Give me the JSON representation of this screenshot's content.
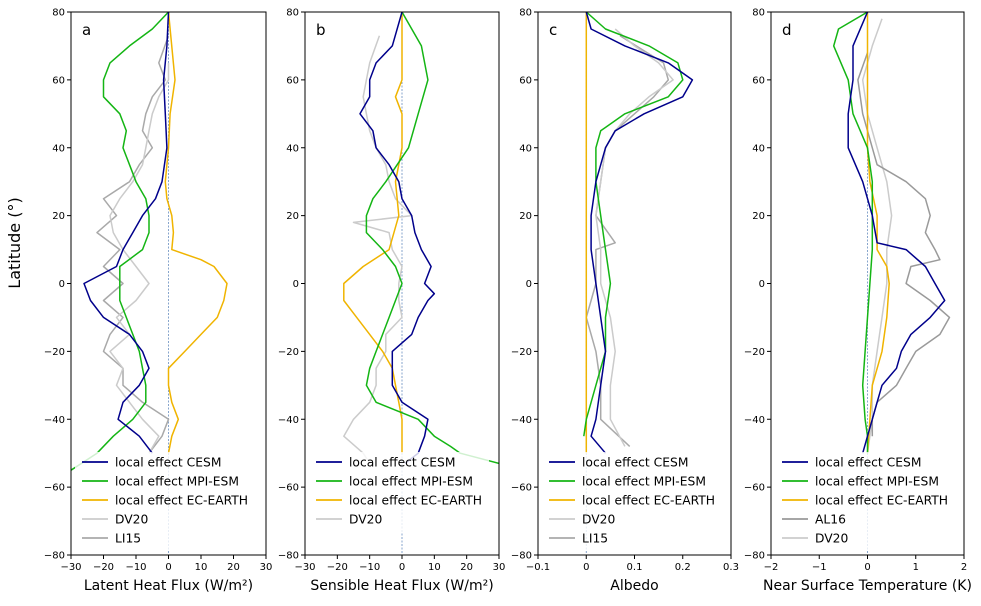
{
  "ylabel": "Latitude (°)",
  "colors": {
    "CESM": "#00008b",
    "MPI-ESM": "#14b514",
    "EC-EARTH": "#f0b400",
    "DV20": "#cbcbcb",
    "LI15": "#a9a9a9",
    "AL16": "#9a9a9a",
    "zero_line": "#6a8fc0"
  },
  "chart_data": [
    {
      "type": "line",
      "panel_label": "a",
      "xlabel": "Latent Heat Flux (W/m²)",
      "xlim": [
        -30,
        30
      ],
      "ylim": [
        -80,
        80
      ],
      "xticks": [
        -30,
        -20,
        -10,
        0,
        10,
        20,
        30
      ],
      "yticks": [
        -80,
        -60,
        -40,
        -20,
        0,
        20,
        40,
        60,
        80
      ],
      "legend": "lower-left",
      "grid": false,
      "series": [
        {
          "name": "local effect CESM",
          "color": "#00008b",
          "lat": [
            80,
            70,
            60,
            50,
            40,
            30,
            25,
            20,
            15,
            10,
            5,
            0,
            -5,
            -10,
            -15,
            -20,
            -25,
            -30,
            -35,
            -40,
            -45,
            -50
          ],
          "values": [
            0,
            -0.5,
            -1.5,
            -1,
            -0.5,
            -2,
            -4,
            -8,
            -11,
            -14,
            -16,
            -26,
            -24,
            -20,
            -12,
            -8,
            -6,
            -9,
            -14,
            -15.5,
            -9,
            -5
          ]
        },
        {
          "name": "local effect MPI-ESM",
          "color": "#14b514",
          "lat": [
            80,
            75,
            70,
            65,
            60,
            55,
            50,
            45,
            40,
            35,
            30,
            25,
            20,
            15,
            10,
            5,
            0,
            -5,
            -10,
            -15,
            -20,
            -25,
            -30,
            -35,
            -40,
            -45,
            -50,
            -55
          ],
          "values": [
            0,
            -5,
            -12,
            -18,
            -20,
            -20,
            -15,
            -13,
            -14,
            -12,
            -10,
            -7,
            -6,
            -6,
            -8,
            -15,
            -15,
            -15,
            -13,
            -11,
            -9,
            -8,
            -7,
            -7,
            -11,
            -17,
            -22,
            -30
          ]
        },
        {
          "name": "local effect EC-EARTH",
          "color": "#f0b400",
          "lat": [
            80,
            60,
            50,
            40,
            30,
            25,
            20,
            15,
            10,
            7,
            5,
            0,
            -5,
            -10,
            -15,
            -20,
            -25,
            -30,
            -35,
            -40,
            -45,
            -50
          ],
          "values": [
            0,
            2,
            0.5,
            0,
            -1,
            -0.5,
            1,
            1.5,
            1,
            10,
            14,
            18,
            17,
            15,
            10,
            5,
            0,
            0,
            1,
            3,
            1,
            0
          ]
        },
        {
          "name": "DV20",
          "color": "#cbcbcb",
          "lat": [
            65,
            60,
            55,
            50,
            45,
            40,
            35,
            30,
            25,
            20,
            15,
            10,
            5,
            0,
            -5,
            -10,
            -15,
            -20,
            -25,
            -30,
            -35,
            -40,
            -45,
            -50
          ],
          "values": [
            0,
            0,
            -3,
            -5,
            -6,
            -7,
            -8,
            -11,
            -15,
            -18,
            -17,
            -14,
            -10,
            -6,
            -10,
            -16,
            -12,
            -18,
            -14,
            -16,
            -12,
            -8,
            -3,
            -6
          ]
        },
        {
          "name": "LI15",
          "color": "#a9a9a9",
          "lat": [
            73,
            65,
            60,
            55,
            50,
            45,
            40,
            35,
            30,
            25,
            20,
            15,
            10,
            5,
            0,
            -5,
            -10,
            -15,
            -20,
            -25,
            -30,
            -35,
            -40,
            -45,
            -50
          ],
          "values": [
            0,
            -3,
            -1,
            -5,
            -7,
            -8,
            -5,
            -9,
            -12,
            -20,
            -16,
            -22,
            -15,
            -20,
            -14,
            -20,
            -14,
            -18,
            -20,
            -14,
            -14,
            -8,
            0,
            -2,
            -6
          ]
        }
      ]
    },
    {
      "type": "line",
      "panel_label": "b",
      "xlabel": "Sensible Heat Flux (W/m²)",
      "xlim": [
        -30,
        30
      ],
      "ylim": [
        -80,
        80
      ],
      "xticks": [
        -30,
        -20,
        -10,
        0,
        10,
        20,
        30
      ],
      "yticks": [
        -80,
        -60,
        -40,
        -20,
        0,
        20,
        40,
        60,
        80
      ],
      "legend": "lower-left",
      "grid": false,
      "series": [
        {
          "name": "local effect CESM",
          "color": "#00008b",
          "lat": [
            80,
            70,
            65,
            60,
            55,
            50,
            45,
            40,
            35,
            30,
            25,
            20,
            15,
            10,
            5,
            0,
            -3,
            -5,
            -10,
            -15,
            -20,
            -25,
            -30,
            -35,
            -40,
            -45,
            -50,
            -53
          ],
          "values": [
            0,
            -3,
            -8,
            -10,
            -10,
            -13,
            -9,
            -8,
            -4,
            -1,
            0,
            3,
            4,
            6,
            9,
            7,
            10,
            8,
            5,
            3,
            -3,
            -3,
            -3,
            0,
            8,
            7,
            5,
            1
          ]
        },
        {
          "name": "local effect MPI-ESM",
          "color": "#14b514",
          "lat": [
            80,
            70,
            60,
            50,
            40,
            30,
            25,
            20,
            15,
            10,
            5,
            0,
            -5,
            -10,
            -15,
            -20,
            -25,
            -30,
            -35,
            -40,
            -45,
            -48,
            -50,
            -53
          ],
          "values": [
            0,
            6,
            8,
            5,
            2,
            -5,
            -9,
            -11,
            -11,
            -6,
            -2,
            0,
            -2,
            -4,
            -6,
            -8,
            -10,
            -11,
            -8,
            5,
            10,
            15,
            18,
            30
          ]
        },
        {
          "name": "local effect EC-EARTH",
          "color": "#f0b400",
          "lat": [
            80,
            60,
            55,
            50,
            40,
            30,
            20,
            10,
            5,
            0,
            -5,
            -10,
            -15,
            -20,
            -25,
            -30,
            -35,
            -40,
            -50
          ],
          "values": [
            0,
            0,
            -2,
            0,
            0,
            -2,
            -1,
            -4,
            -12,
            -18,
            -18,
            -14,
            -10,
            -6,
            -3,
            -2,
            -1,
            0,
            0
          ]
        },
        {
          "name": "DV20",
          "color": "#cbcbcb",
          "lat": [
            73,
            65,
            60,
            55,
            50,
            45,
            40,
            35,
            30,
            25,
            20,
            18,
            15,
            10,
            5,
            0,
            -5,
            -10,
            -15,
            -20,
            -25,
            -30,
            -35,
            -40,
            -45,
            -50,
            -53
          ],
          "values": [
            -7,
            -10,
            -11,
            -12,
            -11,
            -10,
            -8,
            -5,
            -4,
            -2,
            3,
            -15,
            -4,
            -3,
            0,
            -1,
            -1,
            0,
            -5,
            -5,
            -8,
            -8,
            -10,
            -15,
            -18,
            -12,
            -10
          ]
        }
      ]
    },
    {
      "type": "line",
      "panel_label": "c",
      "xlabel": "Albedo",
      "xlim": [
        -0.1,
        0.3
      ],
      "ylim": [
        -80,
        80
      ],
      "xticks": [
        -0.1,
        0.0,
        0.1,
        0.2,
        0.3
      ],
      "yticks": [
        -80,
        -60,
        -40,
        -20,
        0,
        20,
        40,
        60,
        80
      ],
      "legend": "lower-left",
      "grid": false,
      "series": [
        {
          "name": "local effect CESM",
          "color": "#00008b",
          "lat": [
            80,
            75,
            70,
            65,
            60,
            55,
            50,
            45,
            40,
            30,
            20,
            10,
            0,
            -10,
            -20,
            -30,
            -40,
            -45,
            -50
          ],
          "values": [
            0,
            0.01,
            0.08,
            0.17,
            0.22,
            0.2,
            0.12,
            0.06,
            0.04,
            0.02,
            0.01,
            0.01,
            0.02,
            0.03,
            0.04,
            0.03,
            0.02,
            0.01,
            0.04
          ]
        },
        {
          "name": "local effect MPI-ESM",
          "color": "#14b514",
          "lat": [
            80,
            75,
            70,
            65,
            60,
            55,
            50,
            45,
            40,
            30,
            20,
            10,
            0,
            -10,
            -20,
            -30,
            -40,
            -45
          ],
          "values": [
            0,
            0.04,
            0.13,
            0.19,
            0.2,
            0.17,
            0.08,
            0.03,
            0.02,
            0.02,
            0.03,
            0.04,
            0.05,
            0.04,
            0.04,
            0.02,
            0,
            -0.005
          ]
        },
        {
          "name": "local effect EC-EARTH",
          "color": "#f0b400",
          "lat": [
            80,
            0,
            -50
          ],
          "values": [
            0,
            0,
            0
          ]
        },
        {
          "name": "DV20",
          "color": "#cbcbcb",
          "lat": [
            75,
            70,
            65,
            60,
            55,
            50,
            45,
            40,
            30,
            20,
            10,
            0,
            -10,
            -20,
            -30,
            -40,
            -48
          ],
          "values": [
            0.06,
            0.1,
            0.15,
            0.18,
            0.13,
            0.09,
            0.06,
            0.04,
            0.03,
            0.02,
            0.03,
            0.03,
            0.05,
            0.06,
            0.05,
            0.05,
            0.08
          ]
        },
        {
          "name": "LI15",
          "color": "#a9a9a9",
          "lat": [
            73,
            65,
            60,
            55,
            50,
            45,
            40,
            30,
            20,
            12,
            10,
            0,
            -10,
            -20,
            -30,
            -40,
            -48
          ],
          "values": [
            0.07,
            0.16,
            0.17,
            0.14,
            0.1,
            0.06,
            0.04,
            0.03,
            0.02,
            0.06,
            0.02,
            0.02,
            0,
            0.02,
            0.03,
            0.03,
            0.09
          ]
        }
      ]
    },
    {
      "type": "line",
      "panel_label": "d",
      "xlabel": "Near Surface Temperature (K)",
      "xlim": [
        -2,
        2
      ],
      "ylim": [
        -80,
        80
      ],
      "xticks": [
        -2,
        -1,
        0,
        1,
        2
      ],
      "yticks": [
        -80,
        -60,
        -40,
        -20,
        0,
        20,
        40,
        60,
        80
      ],
      "legend": "lower-left",
      "grid": false,
      "series": [
        {
          "name": "local effect CESM",
          "color": "#00008b",
          "lat": [
            80,
            70,
            60,
            50,
            40,
            30,
            20,
            12,
            10,
            5,
            0,
            -5,
            -10,
            -15,
            -20,
            -25,
            -30,
            -35,
            -40,
            -45,
            -50
          ],
          "values": [
            0,
            -0.3,
            -0.3,
            -0.4,
            -0.4,
            -0.1,
            0.1,
            0.2,
            0.8,
            1.2,
            1.4,
            1.6,
            1.3,
            0.9,
            0.7,
            0.6,
            0.3,
            0.2,
            0.1,
            0,
            -0.1
          ]
        },
        {
          "name": "local effect MPI-ESM",
          "color": "#14b514",
          "lat": [
            80,
            75,
            70,
            60,
            50,
            40,
            30,
            20,
            10,
            0,
            -10,
            -20,
            -30,
            -40,
            -45,
            -50
          ],
          "values": [
            0,
            -0.6,
            -0.7,
            -0.4,
            -0.3,
            0,
            0.1,
            0.1,
            0.1,
            0.05,
            0,
            -0.05,
            -0.1,
            -0.05,
            0,
            0
          ]
        },
        {
          "name": "local effect EC-EARTH",
          "color": "#f0b400",
          "lat": [
            80,
            60,
            40,
            30,
            20,
            10,
            5,
            0,
            -10,
            -20,
            -30,
            -40,
            -50
          ],
          "values": [
            0,
            0,
            0,
            0.05,
            0.2,
            0.2,
            0.4,
            0.45,
            0.4,
            0.3,
            0.1,
            0.05,
            0
          ]
        },
        {
          "name": "AL16",
          "color": "#9a9a9a",
          "lat": [
            68,
            60,
            50,
            40,
            35,
            30,
            25,
            20,
            15,
            10,
            7,
            5,
            0,
            -5,
            -10,
            -15,
            -20,
            -25,
            -30,
            -35,
            -40,
            -45
          ],
          "values": [
            0,
            -0.2,
            -0.1,
            0.1,
            0.2,
            0.8,
            1.2,
            1.3,
            1.2,
            1.4,
            1.5,
            0.9,
            0.8,
            1.3,
            1.7,
            1.5,
            1,
            0.8,
            0.6,
            0.2,
            0.1,
            0.1
          ]
        },
        {
          "name": "DV20",
          "color": "#cbcbcb",
          "lat": [
            78,
            70,
            60,
            50,
            40,
            30,
            20,
            10,
            0,
            -10,
            -20,
            -30,
            -40,
            -50
          ],
          "values": [
            0.3,
            0.1,
            -0.1,
            0,
            0.2,
            0.4,
            0.5,
            0.4,
            0.4,
            0.3,
            0.2,
            0.1,
            0.1,
            0
          ]
        }
      ]
    }
  ]
}
